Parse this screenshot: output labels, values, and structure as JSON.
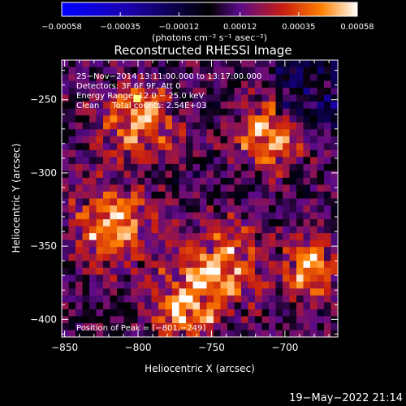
{
  "chart_data": {
    "type": "heatmap",
    "title": "Reconstructed RHESSI Image",
    "xlabel": "Heliocentric X (arcsec)",
    "ylabel": "Heliocentric Y (arcsec)",
    "xlim": [
      -852,
      -664
    ],
    "ylim": [
      -412,
      -223
    ],
    "x_ticks": [
      {
        "value": -850,
        "label": "−850"
      },
      {
        "value": -800,
        "label": "−800"
      },
      {
        "value": -750,
        "label": "−750"
      },
      {
        "value": -700,
        "label": "−700"
      }
    ],
    "y_ticks": [
      {
        "value": -250,
        "label": "−250"
      },
      {
        "value": -300,
        "label": "−300"
      },
      {
        "value": -350,
        "label": "−350"
      },
      {
        "value": -400,
        "label": "−400"
      }
    ],
    "colorbar": {
      "range": [
        -0.00058,
        0.00058
      ],
      "ticks": [
        {
          "value": -0.00058,
          "label": "−0.00058"
        },
        {
          "value": -0.00035,
          "label": "−0.00035"
        },
        {
          "value": -0.00012,
          "label": "−0.00012"
        },
        {
          "value": 0.00012,
          "label": "0.00012"
        },
        {
          "value": 0.00035,
          "label": "0.00035"
        },
        {
          "value": 0.00058,
          "label": "0.00058"
        }
      ],
      "unit_label": "(photons cm⁻² s⁻¹ asec⁻²)",
      "colors": [
        "#0000ff",
        "#1a00b0",
        "#000000",
        "#5a0a8a",
        "#c81e10",
        "#ff8000",
        "#ffffff"
      ]
    },
    "annotations": [
      "25−Nov−2014 13:11:00.000 to 13:17:00.000",
      "Detectors: 3F 6F 9F, Att 0",
      "Energy Range: 12.0 − 25.0 keV",
      "Clean     Total counts: 2.54E+03"
    ],
    "peak_label": "Position of Peak = [−801,−249]",
    "peak_position": [
      -801,
      -249
    ]
  },
  "footer": {
    "timestamp": "19−May−2022 21:14"
  }
}
